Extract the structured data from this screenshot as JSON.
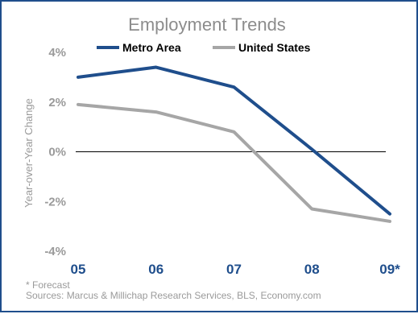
{
  "chart_data": {
    "type": "line",
    "title": "Employment Trends",
    "ylabel": "Year-over-Year Change",
    "xlabel": "",
    "categories": [
      "05",
      "06",
      "07",
      "08",
      "09*"
    ],
    "y_ticks": [
      "4%",
      "2%",
      "0%",
      "-2%",
      "-4%"
    ],
    "ylim": [
      -4,
      4
    ],
    "series": [
      {
        "name": "Metro Area",
        "values": [
          3.0,
          3.4,
          2.6,
          0.1,
          -2.5
        ],
        "color": "#1f4e8c"
      },
      {
        "name": "United States",
        "values": [
          1.9,
          1.6,
          0.8,
          -2.3,
          -2.8
        ],
        "color": "#a6a6a6"
      }
    ],
    "grid": false,
    "legend_position": "top",
    "notes": [
      "* Forecast",
      "Sources: Marcus & Millichap Research Services, BLS, Economy.com"
    ]
  }
}
